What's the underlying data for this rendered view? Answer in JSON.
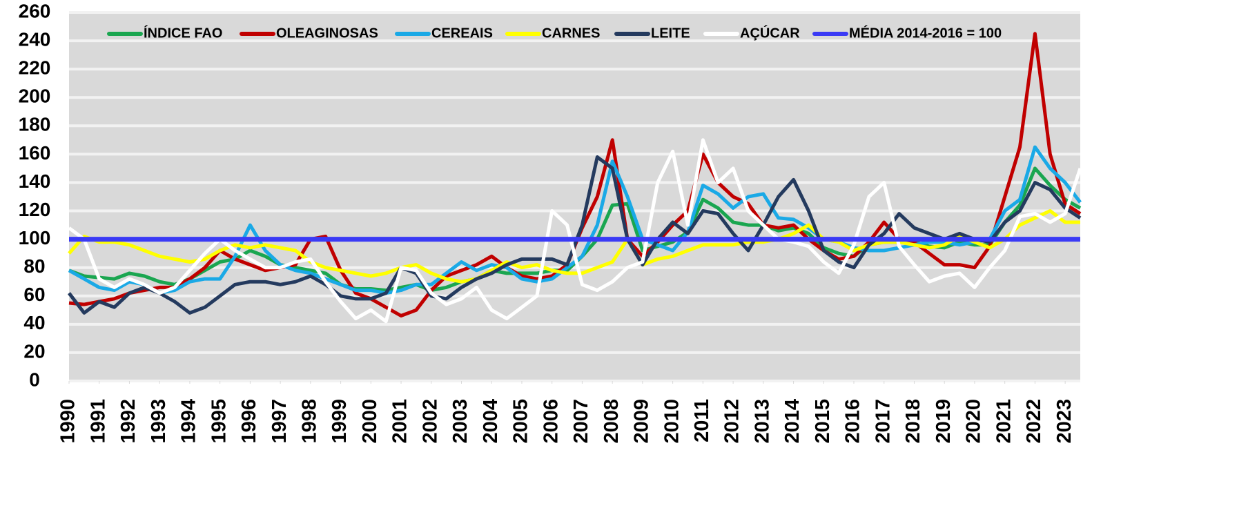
{
  "chart_data": {
    "type": "line",
    "x": [
      1990,
      1990.5,
      1991,
      1991.5,
      1992,
      1992.5,
      1993,
      1993.5,
      1994,
      1994.5,
      1995,
      1995.5,
      1996,
      1996.5,
      1997,
      1997.5,
      1998,
      1998.5,
      1999,
      1999.5,
      2000,
      2000.5,
      2001,
      2001.5,
      2002,
      2002.5,
      2003,
      2003.5,
      2004,
      2004.5,
      2005,
      2005.5,
      2006,
      2006.5,
      2007,
      2007.5,
      2008,
      2008.5,
      2009,
      2009.5,
      2010,
      2010.5,
      2011,
      2011.5,
      2012,
      2012.5,
      2013,
      2013.5,
      2014,
      2014.5,
      2015,
      2015.5,
      2016,
      2016.5,
      2017,
      2017.5,
      2018,
      2018.5,
      2019,
      2019.5,
      2020,
      2020.5,
      2021,
      2021.5,
      2022,
      2022.5,
      2023,
      2023.5
    ],
    "xlim": [
      1990,
      2023.5
    ],
    "xticks": [
      1990,
      1991,
      1992,
      1993,
      1994,
      1995,
      1996,
      1997,
      1998,
      1999,
      2000,
      2001,
      2002,
      2003,
      2004,
      2005,
      2006,
      2007,
      2008,
      2009,
      2010,
      2011,
      2012,
      2013,
      2014,
      2015,
      2016,
      2017,
      2018,
      2019,
      2020,
      2021,
      2022,
      2023
    ],
    "ylim": [
      0,
      260
    ],
    "yticks": [
      0,
      20,
      40,
      60,
      80,
      100,
      120,
      140,
      160,
      180,
      200,
      220,
      240,
      260
    ],
    "grid": true,
    "series": [
      {
        "name": "ÍNDICE FAO",
        "color": "#1aa650",
        "values": [
          78,
          74,
          73,
          72,
          76,
          74,
          70,
          68,
          72,
          78,
          84,
          86,
          92,
          88,
          82,
          80,
          78,
          76,
          68,
          65,
          65,
          64,
          66,
          68,
          64,
          66,
          70,
          72,
          78,
          76,
          76,
          76,
          78,
          78,
          88,
          100,
          124,
          125,
          92,
          95,
          98,
          105,
          128,
          122,
          112,
          110,
          110,
          106,
          108,
          104,
          94,
          90,
          88,
          96,
          98,
          98,
          98,
          95,
          94,
          98,
          96,
          96,
          112,
          124,
          150,
          138,
          128,
          122
        ]
      },
      {
        "name": "OLEAGINOSAS",
        "color": "#c00000",
        "values": [
          55,
          54,
          56,
          58,
          62,
          64,
          66,
          66,
          72,
          80,
          92,
          86,
          82,
          78,
          80,
          82,
          100,
          102,
          78,
          62,
          58,
          52,
          46,
          50,
          64,
          74,
          78,
          82,
          88,
          80,
          74,
          72,
          74,
          82,
          108,
          130,
          170,
          100,
          88,
          98,
          110,
          120,
          160,
          140,
          130,
          125,
          110,
          108,
          110,
          100,
          92,
          86,
          88,
          98,
          112,
          100,
          98,
          90,
          82,
          82,
          80,
          95,
          130,
          165,
          245,
          160,
          125,
          118
        ]
      },
      {
        "name": "CEREAIS",
        "color": "#1aa9e6",
        "values": [
          78,
          72,
          66,
          64,
          70,
          68,
          62,
          64,
          70,
          72,
          72,
          88,
          110,
          92,
          82,
          78,
          76,
          72,
          68,
          64,
          64,
          62,
          64,
          68,
          68,
          76,
          84,
          78,
          82,
          80,
          72,
          70,
          72,
          80,
          88,
          110,
          155,
          130,
          100,
          96,
          92,
          105,
          138,
          132,
          122,
          130,
          132,
          115,
          114,
          108,
          100,
          98,
          94,
          92,
          92,
          94,
          96,
          98,
          98,
          96,
          98,
          100,
          120,
          128,
          165,
          150,
          140,
          126
        ]
      },
      {
        "name": "CARNES",
        "color": "#ffff00",
        "values": [
          90,
          102,
          98,
          98,
          96,
          92,
          88,
          86,
          84,
          86,
          92,
          96,
          94,
          96,
          94,
          92,
          84,
          80,
          78,
          76,
          74,
          76,
          80,
          82,
          76,
          72,
          70,
          72,
          78,
          84,
          80,
          82,
          78,
          76,
          76,
          80,
          84,
          100,
          82,
          86,
          88,
          92,
          96,
          96,
          96,
          98,
          98,
          100,
          104,
          110,
          100,
          98,
          92,
          96,
          98,
          98,
          96,
          94,
          96,
          102,
          98,
          94,
          100,
          110,
          115,
          120,
          112,
          112
        ]
      },
      {
        "name": "LEITE",
        "color": "#243a5e",
        "values": [
          62,
          48,
          56,
          52,
          62,
          66,
          62,
          56,
          48,
          52,
          60,
          68,
          70,
          70,
          68,
          70,
          74,
          68,
          60,
          58,
          58,
          62,
          80,
          76,
          60,
          58,
          66,
          72,
          76,
          82,
          86,
          86,
          86,
          82,
          110,
          158,
          150,
          100,
          82,
          100,
          112,
          104,
          120,
          118,
          104,
          92,
          110,
          130,
          142,
          120,
          92,
          84,
          80,
          96,
          104,
          118,
          108,
          104,
          100,
          104,
          100,
          98,
          112,
          120,
          140,
          135,
          122,
          115
        ]
      },
      {
        "name": "AÇÚCAR",
        "color": "#ffffff",
        "values": [
          108,
          100,
          72,
          66,
          72,
          68,
          62,
          66,
          78,
          90,
          100,
          92,
          86,
          80,
          80,
          84,
          86,
          70,
          56,
          44,
          50,
          42,
          80,
          78,
          62,
          54,
          58,
          66,
          50,
          44,
          52,
          60,
          120,
          110,
          68,
          64,
          70,
          80,
          84,
          140,
          162,
          110,
          170,
          140,
          150,
          120,
          110,
          100,
          98,
          95,
          84,
          76,
          96,
          130,
          140,
          95,
          82,
          70,
          74,
          76,
          66,
          80,
          92,
          116,
          118,
          112,
          118,
          150
        ]
      }
    ],
    "reference_line": {
      "name": "MÉDIA 2014-2016 = 100",
      "value": 100,
      "color": "#3a3af5"
    }
  }
}
